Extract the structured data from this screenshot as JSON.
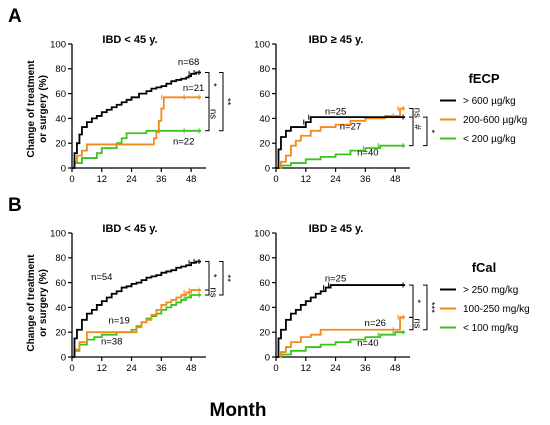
{
  "figure": {
    "panels": [
      "A",
      "B"
    ],
    "xlabel": "Month",
    "ylabel_line1": "Change of treatment",
    "ylabel_line2": "or surgery (%)"
  },
  "chart_data": [
    {
      "type": "line",
      "title": "IBD < 45 y.",
      "xticks": [
        0,
        12,
        24,
        36,
        48
      ],
      "yticks": [
        0,
        20,
        40,
        60,
        80,
        100
      ],
      "xlim": [
        0,
        54
      ],
      "ylim": [
        0,
        100
      ],
      "series": [
        {
          "name": "> 600 µg/kg",
          "color": "#000000",
          "label": "n=68",
          "x": [
            0,
            1,
            2,
            3,
            4,
            6,
            8,
            10,
            12,
            14,
            16,
            18,
            20,
            22,
            24,
            27,
            30,
            32,
            34,
            36,
            38,
            40,
            42,
            44,
            46,
            47,
            48,
            50,
            52
          ],
          "y": [
            0,
            12,
            20,
            27,
            33,
            37,
            40,
            42,
            45,
            47,
            49,
            51,
            53,
            55,
            57,
            60,
            62,
            64,
            65,
            66,
            68,
            70,
            71,
            72,
            73,
            74,
            76,
            77,
            77
          ]
        },
        {
          "name": "200-600 µg/kg",
          "color": "#f28a1c",
          "label": "n=21",
          "x": [
            0,
            1,
            2,
            4,
            6,
            14,
            24,
            32,
            33,
            34,
            35,
            36,
            37,
            46,
            52
          ],
          "y": [
            0,
            5,
            10,
            14,
            19,
            19,
            19,
            19,
            24,
            29,
            38,
            48,
            57,
            57,
            57
          ]
        },
        {
          "name": "< 200 µg/kg",
          "color": "#3cc41e",
          "label": "n=22",
          "x": [
            0,
            1,
            4,
            8,
            10,
            12,
            18,
            20,
            22,
            28,
            30,
            36,
            46,
            52
          ],
          "y": [
            0,
            4,
            8,
            8,
            12,
            16,
            20,
            24,
            28,
            28,
            30,
            30,
            30,
            30
          ]
        }
      ],
      "brackets": [
        {
          "label": "*",
          "from": 77,
          "to": 57
        },
        {
          "label": "ns",
          "from": 57,
          "to": 30
        },
        {
          "label": "**",
          "from": 77,
          "to": 30
        }
      ]
    },
    {
      "type": "line",
      "title": "IBD ≥ 45 y.",
      "xticks": [
        0,
        12,
        24,
        36,
        48
      ],
      "yticks": [
        0,
        20,
        40,
        60,
        80,
        100
      ],
      "xlim": [
        0,
        54
      ],
      "ylim": [
        0,
        100
      ],
      "series": [
        {
          "name": "> 600 µg/kg",
          "color": "#000000",
          "label": "n=25",
          "x": [
            0,
            1,
            2,
            4,
            6,
            10,
            12,
            14,
            52
          ],
          "y": [
            0,
            15,
            25,
            30,
            33,
            33,
            37,
            41,
            41
          ]
        },
        {
          "name": "200-600 µg/kg",
          "color": "#f28a1c",
          "label": "n=27",
          "x": [
            0,
            2,
            4,
            6,
            8,
            10,
            14,
            18,
            24,
            30,
            36,
            44,
            48,
            50,
            52
          ],
          "y": [
            0,
            5,
            10,
            18,
            22,
            26,
            30,
            33,
            35,
            38,
            40,
            42,
            42,
            48,
            48
          ]
        },
        {
          "name": "< 200 µg/kg",
          "color": "#3cc41e",
          "label": "n=40",
          "x": [
            0,
            2,
            6,
            12,
            18,
            24,
            30,
            36,
            42,
            52
          ],
          "y": [
            0,
            2,
            4,
            7,
            9,
            11,
            14,
            16,
            18,
            18
          ]
        }
      ],
      "brackets": [
        {
          "label": "ns",
          "from": 41,
          "to": 48
        },
        {
          "label": "#",
          "from": 48,
          "to": 18
        },
        {
          "label": "*",
          "from": 41,
          "to": 18
        }
      ]
    },
    {
      "type": "line",
      "title": "IBD < 45 y.",
      "xticks": [
        0,
        12,
        24,
        36,
        48
      ],
      "yticks": [
        0,
        20,
        40,
        60,
        80,
        100
      ],
      "xlim": [
        0,
        54
      ],
      "ylim": [
        0,
        100
      ],
      "series": [
        {
          "name": "> 250 mg/kg",
          "color": "#000000",
          "label": "n=54",
          "x": [
            0,
            1,
            2,
            4,
            6,
            8,
            10,
            12,
            14,
            16,
            18,
            20,
            22,
            24,
            26,
            28,
            30,
            32,
            34,
            36,
            38,
            40,
            42,
            44,
            46,
            48,
            50,
            52
          ],
          "y": [
            0,
            15,
            22,
            30,
            35,
            38,
            42,
            45,
            48,
            51,
            53,
            56,
            57,
            59,
            60,
            62,
            64,
            65,
            66,
            68,
            69,
            70,
            72,
            73,
            74,
            76,
            77,
            77
          ]
        },
        {
          "name": "100-250 mg/kg",
          "color": "#f28a1c",
          "label": "n=19",
          "x": [
            0,
            1,
            3,
            6,
            12,
            18,
            24,
            26,
            28,
            30,
            32,
            34,
            36,
            38,
            40,
            42,
            44,
            46,
            48,
            52
          ],
          "y": [
            0,
            6,
            12,
            20,
            20,
            20,
            20,
            24,
            28,
            30,
            34,
            38,
            42,
            44,
            46,
            48,
            50,
            52,
            54,
            54
          ]
        },
        {
          "name": "< 100 mg/kg",
          "color": "#3cc41e",
          "label": "n=38",
          "x": [
            0,
            1,
            3,
            6,
            9,
            12,
            18,
            24,
            26,
            28,
            30,
            32,
            34,
            36,
            38,
            40,
            42,
            44,
            46,
            48,
            52
          ],
          "y": [
            0,
            5,
            10,
            14,
            16,
            18,
            20,
            22,
            25,
            28,
            31,
            33,
            35,
            38,
            40,
            42,
            44,
            46,
            48,
            50,
            50
          ]
        }
      ],
      "brackets": [
        {
          "label": "*",
          "from": 77,
          "to": 54
        },
        {
          "label": "ns",
          "from": 54,
          "to": 50
        },
        {
          "label": "**",
          "from": 77,
          "to": 50
        }
      ]
    },
    {
      "type": "line",
      "title": "IBD ≥ 45 y.",
      "xticks": [
        0,
        12,
        24,
        36,
        48
      ],
      "yticks": [
        0,
        20,
        40,
        60,
        80,
        100
      ],
      "xlim": [
        0,
        54
      ],
      "ylim": [
        0,
        100
      ],
      "series": [
        {
          "name": "> 250 mg/kg",
          "color": "#000000",
          "label": "n=25",
          "x": [
            0,
            1,
            2,
            4,
            6,
            8,
            10,
            12,
            14,
            16,
            18,
            20,
            22,
            52
          ],
          "y": [
            0,
            15,
            22,
            30,
            35,
            38,
            42,
            45,
            48,
            51,
            53,
            56,
            58,
            58
          ]
        },
        {
          "name": "100-250 mg/kg",
          "color": "#f28a1c",
          "label": "n=26",
          "x": [
            0,
            2,
            4,
            6,
            10,
            14,
            18,
            48,
            50,
            52
          ],
          "y": [
            0,
            4,
            8,
            12,
            16,
            18,
            22,
            22,
            32,
            32
          ]
        },
        {
          "name": "< 100 mg/kg",
          "color": "#3cc41e",
          "label": "n=40",
          "x": [
            0,
            2,
            6,
            12,
            18,
            24,
            30,
            36,
            42,
            48,
            52
          ],
          "y": [
            0,
            2,
            5,
            8,
            10,
            12,
            14,
            16,
            18,
            20,
            20
          ]
        }
      ],
      "brackets": [
        {
          "label": "*",
          "from": 58,
          "to": 32
        },
        {
          "label": "ns",
          "from": 32,
          "to": 22
        },
        {
          "label": "***",
          "from": 58,
          "to": 22
        }
      ]
    }
  ],
  "legends": [
    {
      "title": "fECP",
      "items": [
        {
          "label": "> 600 µg/kg",
          "color": "#000000"
        },
        {
          "label": "200-600 µg/kg",
          "color": "#f28a1c"
        },
        {
          "label": "< 200 µg/kg",
          "color": "#3cc41e"
        }
      ]
    },
    {
      "title": "fCal",
      "items": [
        {
          "label": "> 250 mg/kg",
          "color": "#000000"
        },
        {
          "label": "100-250 mg/kg",
          "color": "#f28a1c"
        },
        {
          "label": "< 100 mg/kg",
          "color": "#3cc41e"
        }
      ]
    }
  ]
}
